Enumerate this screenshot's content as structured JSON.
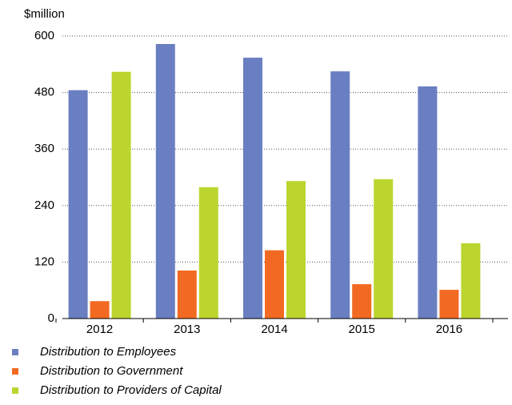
{
  "chart_data": {
    "type": "bar",
    "y_label": "$million",
    "categories": [
      "2012",
      "2013",
      "2014",
      "2015",
      "2016"
    ],
    "series": [
      {
        "name": "Distribution to Employees",
        "color": "#6a7fc1",
        "values": [
          485,
          583,
          554,
          525,
          493
        ]
      },
      {
        "name": "Distribution to Government",
        "color": "#f26a22",
        "values": [
          37,
          102,
          145,
          73,
          61
        ]
      },
      {
        "name": "Distribution to Providers of Capital",
        "color": "#bcd52e",
        "values": [
          524,
          279,
          292,
          296,
          160
        ]
      }
    ],
    "ylim": [
      0,
      600
    ],
    "yticks": [
      0,
      120,
      240,
      360,
      480,
      600
    ],
    "grid": true
  }
}
